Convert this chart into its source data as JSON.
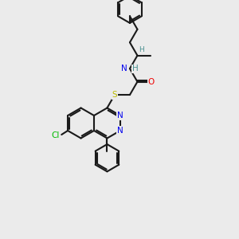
{
  "bg_color": "#ebebeb",
  "bond_color": "#1a1a1a",
  "bond_width": 1.5,
  "atom_colors": {
    "N": "#0000ee",
    "O": "#ee0000",
    "S": "#bbbb00",
    "Cl": "#00bb00",
    "H": "#4a9090",
    "C": "#1a1a1a"
  },
  "font_size": 7.5,
  "font_size_small": 6.5
}
